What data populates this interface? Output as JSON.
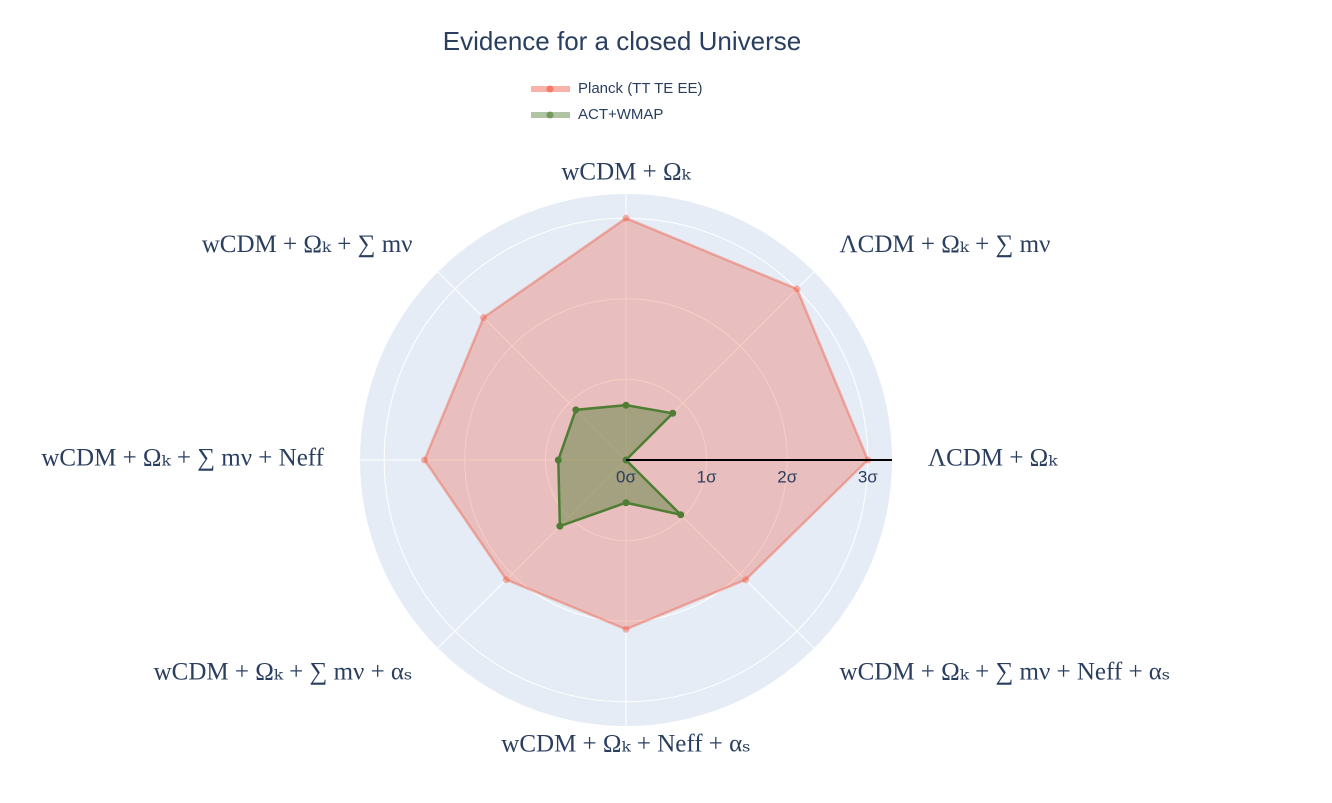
{
  "chart_data": {
    "type": "radar",
    "title": "Evidence for a closed Universe",
    "categories": [
      "ΛCDM + Ωₖ",
      "ΛCDM + Ωₖ + ∑ mν",
      "wCDM + Ωₖ",
      "wCDM + Ωₖ + ∑ mν",
      "wCDM + Ωₖ + ∑ mν + Neff",
      "wCDM + Ωₖ + ∑ mν + αₛ",
      "wCDM + Ωₖ + Neff + αₛ",
      "wCDM + Ωₖ + ∑ mν + Neff + αₛ"
    ],
    "series": [
      {
        "name": "Planck (TT TE EE)",
        "color": "#ef553b",
        "values": [
          3.0,
          3.0,
          3.0,
          2.5,
          2.5,
          2.1,
          2.1,
          2.1
        ]
      },
      {
        "name": "ACT+WMAP",
        "color": "#4f7d34",
        "values": [
          0,
          0.82,
          0.68,
          0.88,
          0.84,
          1.16,
          0.53,
          0.96
        ]
      }
    ],
    "rlim": [
      0,
      3.3
    ],
    "rticks": [
      {
        "value": 0,
        "label": "0σ"
      },
      {
        "value": 1,
        "label": "1σ"
      },
      {
        "value": 2,
        "label": "2σ"
      },
      {
        "value": 3,
        "label": "3σ"
      }
    ]
  }
}
